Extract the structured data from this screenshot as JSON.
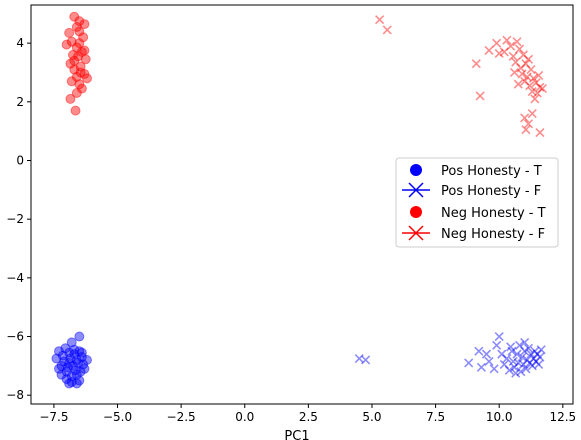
{
  "chart_data": {
    "type": "scatter",
    "title": "",
    "xlabel": "PC1",
    "ylabel": "",
    "xlim": [
      -8.4,
      12.9
    ],
    "ylim": [
      -8.3,
      5.3
    ],
    "xticks": [
      -7.5,
      -5.0,
      -2.5,
      0.0,
      2.5,
      5.0,
      7.5,
      10.0,
      12.5
    ],
    "xtick_labels": [
      "−7.5",
      "−5.0",
      "−2.5",
      "0.0",
      "2.5",
      "5.0",
      "7.5",
      "10.0",
      "12.5"
    ],
    "yticks": [
      -8,
      -6,
      -4,
      -2,
      0,
      2,
      4
    ],
    "ytick_labels": [
      "−8",
      "−6",
      "−4",
      "−2",
      "0",
      "2",
      "4"
    ],
    "grid": false,
    "legend_position": "center-right",
    "legend": [
      {
        "label": "Pos Honesty - T",
        "marker": "circle",
        "color": "#0000ff"
      },
      {
        "label": "Pos Honesty - F",
        "marker": "x",
        "color": "#0000ff"
      },
      {
        "label": "Neg Honesty - T",
        "marker": "circle",
        "color": "#ff0000"
      },
      {
        "label": "Neg Honesty - F",
        "marker": "x",
        "color": "#ff0000"
      }
    ],
    "series": [
      {
        "name": "Pos Honesty - T",
        "marker": "circle",
        "color": "#0000ff",
        "points": [
          [
            -6.6,
            -6.8
          ],
          [
            -6.5,
            -6.0
          ],
          [
            -6.8,
            -6.2
          ],
          [
            -6.9,
            -6.55
          ],
          [
            -7.3,
            -6.5
          ],
          [
            -7.4,
            -6.75
          ],
          [
            -7.3,
            -7.1
          ],
          [
            -7.2,
            -7.3
          ],
          [
            -7.0,
            -7.45
          ],
          [
            -6.8,
            -7.55
          ],
          [
            -6.5,
            -7.5
          ],
          [
            -6.3,
            -7.1
          ],
          [
            -6.2,
            -6.8
          ],
          [
            -6.4,
            -6.55
          ],
          [
            -6.7,
            -6.6
          ],
          [
            -6.9,
            -6.9
          ],
          [
            -7.0,
            -7.2
          ],
          [
            -6.6,
            -7.3
          ],
          [
            -6.75,
            -7.0
          ],
          [
            -6.55,
            -6.9
          ],
          [
            -6.85,
            -6.75
          ],
          [
            -7.1,
            -6.85
          ],
          [
            -6.45,
            -7.2
          ],
          [
            -6.65,
            -7.15
          ],
          [
            -6.95,
            -7.05
          ],
          [
            -7.15,
            -6.65
          ],
          [
            -6.35,
            -6.95
          ],
          [
            -6.7,
            -6.45
          ],
          [
            -6.8,
            -7.35
          ],
          [
            -7.05,
            -6.4
          ],
          [
            -6.6,
            -7.6
          ],
          [
            -6.4,
            -6.7
          ],
          [
            -6.9,
            -7.6
          ],
          [
            -7.2,
            -7.0
          ],
          [
            -6.5,
            -6.5
          ]
        ]
      },
      {
        "name": "Pos Honesty - F",
        "marker": "x",
        "color": "#0000ff",
        "points": [
          [
            4.5,
            -6.75
          ],
          [
            4.75,
            -6.8
          ],
          [
            8.8,
            -6.9
          ],
          [
            9.2,
            -6.5
          ],
          [
            9.5,
            -6.6
          ],
          [
            9.3,
            -7.05
          ],
          [
            9.6,
            -6.85
          ],
          [
            9.8,
            -7.1
          ],
          [
            9.9,
            -6.3
          ],
          [
            10.0,
            -6.0
          ],
          [
            10.1,
            -6.6
          ],
          [
            10.2,
            -6.95
          ],
          [
            10.3,
            -6.75
          ],
          [
            10.4,
            -7.15
          ],
          [
            10.5,
            -6.5
          ],
          [
            10.55,
            -6.85
          ],
          [
            10.6,
            -7.05
          ],
          [
            10.7,
            -6.6
          ],
          [
            10.75,
            -6.9
          ],
          [
            10.8,
            -6.3
          ],
          [
            10.85,
            -7.2
          ],
          [
            10.9,
            -6.7
          ],
          [
            10.95,
            -6.95
          ],
          [
            11.0,
            -6.5
          ],
          [
            11.05,
            -7.1
          ],
          [
            11.1,
            -6.8
          ],
          [
            11.15,
            -6.4
          ],
          [
            11.2,
            -6.9
          ],
          [
            11.25,
            -6.6
          ],
          [
            11.3,
            -7.0
          ],
          [
            11.35,
            -6.75
          ],
          [
            11.4,
            -6.5
          ],
          [
            11.45,
            -6.85
          ],
          [
            11.5,
            -6.6
          ],
          [
            11.55,
            -6.95
          ],
          [
            11.6,
            -6.7
          ],
          [
            11.65,
            -6.45
          ],
          [
            10.45,
            -6.35
          ],
          [
            10.65,
            -7.25
          ],
          [
            11.0,
            -6.2
          ]
        ]
      },
      {
        "name": "Neg Honesty - T",
        "marker": "circle",
        "color": "#ff0000",
        "points": [
          [
            -6.7,
            4.9
          ],
          [
            -6.5,
            4.75
          ],
          [
            -6.3,
            4.65
          ],
          [
            -6.9,
            4.35
          ],
          [
            -6.5,
            4.4
          ],
          [
            -6.35,
            4.2
          ],
          [
            -6.8,
            4.05
          ],
          [
            -7.0,
            3.95
          ],
          [
            -6.6,
            3.85
          ],
          [
            -6.4,
            3.7
          ],
          [
            -6.75,
            3.6
          ],
          [
            -6.55,
            3.55
          ],
          [
            -6.25,
            3.45
          ],
          [
            -6.85,
            3.3
          ],
          [
            -6.45,
            3.2
          ],
          [
            -6.7,
            3.1
          ],
          [
            -6.3,
            2.95
          ],
          [
            -6.6,
            2.85
          ],
          [
            -6.8,
            2.7
          ],
          [
            -6.5,
            2.6
          ],
          [
            -6.4,
            2.45
          ],
          [
            -6.6,
            2.3
          ],
          [
            -6.85,
            2.1
          ],
          [
            -6.65,
            1.7
          ],
          [
            -6.2,
            2.8
          ],
          [
            -6.5,
            4.0
          ],
          [
            -6.7,
            3.4
          ],
          [
            -6.3,
            3.75
          ],
          [
            -6.6,
            4.55
          ],
          [
            -6.45,
            3.0
          ]
        ]
      },
      {
        "name": "Neg Honesty - F",
        "marker": "x",
        "color": "#ff0000",
        "points": [
          [
            5.3,
            4.8
          ],
          [
            5.6,
            4.45
          ],
          [
            9.1,
            3.3
          ],
          [
            9.25,
            2.2
          ],
          [
            9.6,
            3.75
          ],
          [
            9.9,
            4.0
          ],
          [
            10.0,
            3.65
          ],
          [
            10.2,
            3.7
          ],
          [
            10.3,
            4.1
          ],
          [
            10.45,
            3.9
          ],
          [
            10.55,
            3.55
          ],
          [
            10.65,
            3.35
          ],
          [
            10.7,
            4.05
          ],
          [
            10.8,
            3.8
          ],
          [
            10.85,
            3.15
          ],
          [
            10.9,
            2.95
          ],
          [
            10.95,
            3.6
          ],
          [
            11.0,
            2.7
          ],
          [
            11.05,
            3.3
          ],
          [
            11.1,
            2.85
          ],
          [
            11.15,
            3.45
          ],
          [
            11.2,
            2.55
          ],
          [
            11.25,
            3.1
          ],
          [
            11.3,
            2.35
          ],
          [
            11.35,
            2.8
          ],
          [
            11.4,
            2.1
          ],
          [
            11.45,
            2.65
          ],
          [
            11.5,
            2.3
          ],
          [
            11.55,
            2.9
          ],
          [
            11.6,
            2.5
          ],
          [
            11.0,
            1.45
          ],
          [
            11.15,
            1.25
          ],
          [
            11.3,
            1.6
          ],
          [
            11.6,
            0.95
          ],
          [
            11.05,
            1.05
          ],
          [
            10.6,
            3.0
          ],
          [
            11.7,
            2.45
          ],
          [
            10.75,
            2.6
          ]
        ]
      }
    ]
  }
}
